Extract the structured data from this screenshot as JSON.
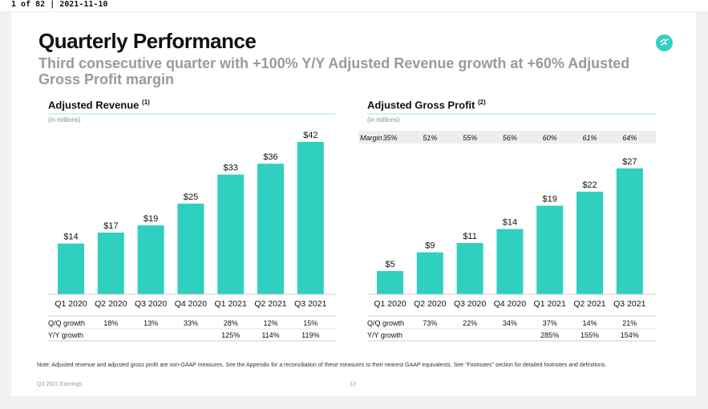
{
  "viewer": {
    "page_indicator": "1 of 82",
    "separator": "|",
    "date": "2021-11-10"
  },
  "slide": {
    "title": "Quarterly Performance",
    "subtitle": "Third consecutive quarter with +100% Y/Y Adjusted Revenue growth at +60% Adjusted Gross Profit margin",
    "note": "Note: Adjusted revenue and adjusted gross profit are non-GAAP measures. See the Appendix for a reconciliation of these measures to their nearest GAAP equivalents. See “Footnotes” section for detailed footnotes and definitions.",
    "footer_left": "Q3 2021 Earnings",
    "page_number": "13",
    "logo_icon": "brand-logo-icon"
  },
  "colors": {
    "bar": "#2fd0c0",
    "rule": "#9fe6de",
    "margin_band": "#eeeeee"
  },
  "chart_data": [
    {
      "type": "bar",
      "title": "Adjusted Revenue",
      "title_footnote": "(1)",
      "unit_label": "(in millions)",
      "categories": [
        "Q1 2020",
        "Q2 2020",
        "Q3 2020",
        "Q4 2020",
        "Q1 2021",
        "Q2 2021",
        "Q3 2021"
      ],
      "values": [
        14,
        17,
        19,
        25,
        33,
        36,
        42
      ],
      "value_labels": [
        "$14",
        "$17",
        "$19",
        "$25",
        "$33",
        "$36",
        "$42"
      ],
      "ylim": [
        0,
        42
      ],
      "table": {
        "rows": [
          {
            "label": "Q/Q growth",
            "values": [
              "18%",
              "13%",
              "33%",
              "28%",
              "12%",
              "15%"
            ]
          },
          {
            "label": "Y/Y growth",
            "values": [
              "",
              "",
              "",
              "125%",
              "114%",
              "119%"
            ]
          }
        ]
      }
    },
    {
      "type": "bar",
      "title": "Adjusted Gross Profit",
      "title_footnote": "(2)",
      "unit_label": "(in millions)",
      "categories": [
        "Q1 2020",
        "Q2 2020",
        "Q3 2020",
        "Q4 2020",
        "Q1 2021",
        "Q2 2021",
        "Q3 2021"
      ],
      "values": [
        5,
        9,
        11,
        14,
        19,
        22,
        27
      ],
      "value_labels": [
        "$5",
        "$9",
        "$11",
        "$14",
        "$19",
        "$22",
        "$27"
      ],
      "ylim": [
        0,
        27
      ],
      "margin_row": {
        "label": "Margin",
        "values": [
          "35%",
          "51%",
          "55%",
          "56%",
          "60%",
          "61%",
          "64%"
        ]
      },
      "table": {
        "rows": [
          {
            "label": "Q/Q growth",
            "values": [
              "73%",
              "22%",
              "34%",
              "37%",
              "14%",
              "21%"
            ]
          },
          {
            "label": "Y/Y growth",
            "values": [
              "",
              "",
              "",
              "285%",
              "155%",
              "154%"
            ]
          }
        ]
      }
    }
  ]
}
